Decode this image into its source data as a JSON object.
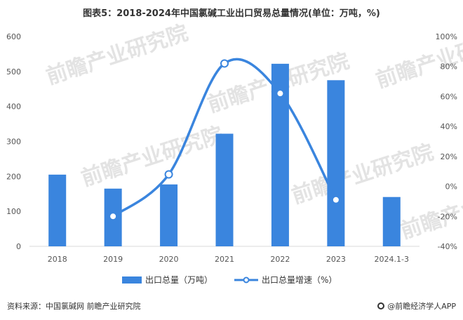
{
  "chart_data": {
    "type": "bar",
    "title": "图表5：2018-2024年中国氯碱工业出口贸易总量情况(单位：万吨，%)",
    "categories": [
      "2018",
      "2019",
      "2020",
      "2021",
      "2022",
      "2023",
      "2024.1-3"
    ],
    "series": [
      {
        "name": "出口总量（万吨）",
        "type": "bar",
        "axis": "left",
        "color": "#3a85de",
        "values": [
          205,
          165,
          177,
          322,
          522,
          475,
          141
        ]
      },
      {
        "name": "出口总量增速（%）",
        "type": "line",
        "axis": "right",
        "color": "#3a85de",
        "values": [
          null,
          -20,
          8,
          82,
          62,
          -9,
          null
        ]
      }
    ],
    "y_left": {
      "ylim": [
        0,
        600
      ],
      "ticks": [
        "0",
        "100",
        "200",
        "300",
        "400",
        "500",
        "600"
      ]
    },
    "y_right": {
      "ylim": [
        -40,
        100
      ],
      "ticks": [
        "-40%",
        "-20%",
        "0%",
        "20%",
        "40%",
        "60%",
        "80%",
        "100%"
      ]
    },
    "grid": false,
    "legend_position": "bottom"
  },
  "footer": {
    "source": "资料来源：中国氯碱网 前瞻产业研究院",
    "brand": "@前瞻经济学人APP"
  },
  "watermark": {
    "text": "前瞻产业研究院"
  }
}
